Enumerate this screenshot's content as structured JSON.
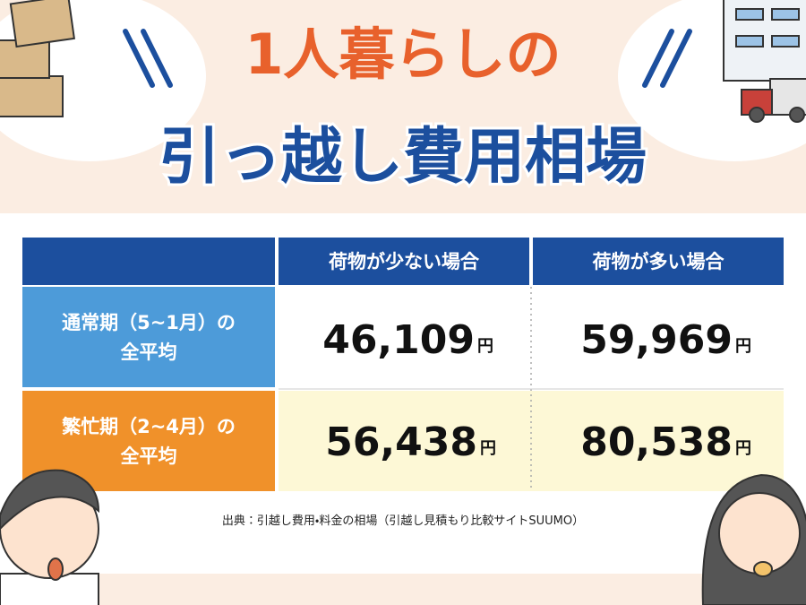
{
  "header": {
    "title_lines": [
      "1人暮らしの",
      "引っ越し費用相場"
    ]
  },
  "table": {
    "columns": [
      "荷物が少ない場合",
      "荷物が多い場合"
    ],
    "rows": [
      {
        "label_lines": [
          "通常期（5~1月）の",
          "全平均"
        ],
        "cells": [
          {
            "amount": "46,109",
            "unit": "円"
          },
          {
            "amount": "59,969",
            "unit": "円"
          }
        ]
      },
      {
        "label_lines": [
          "繁忙期（2~4月）の",
          "全平均"
        ],
        "cells": [
          {
            "amount": "56,438",
            "unit": "円"
          },
          {
            "amount": "80,538",
            "unit": "円"
          }
        ]
      }
    ]
  },
  "source": "出典：引越し費用・料金の相場（引越し見積もり比較サイトSUUMO）"
}
